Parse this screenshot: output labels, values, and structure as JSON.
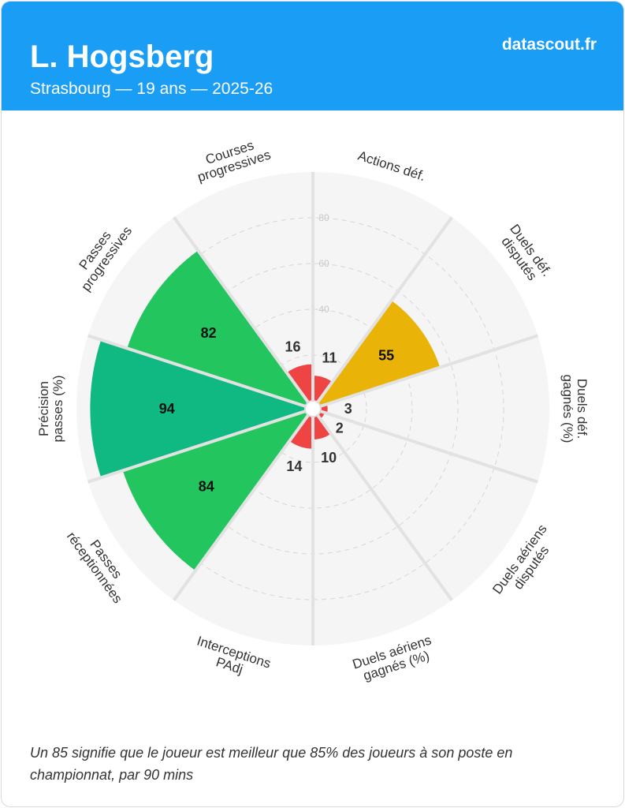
{
  "header": {
    "player_name": "L. Hogsberg",
    "subtitle": "Strasbourg — 19 ans — 2025-26",
    "brand": "datascout.fr"
  },
  "footnote": "Un 85 signifie que le joueur est meilleur que 85% des joueurs à son poste en championnat, par 90 mins",
  "colors": {
    "header_bg": "#1a9ef5",
    "low": "#ef4444",
    "mid": "#eab308",
    "high": "#22c55e",
    "elite": "#10b981"
  },
  "chart_data": {
    "type": "polar-bar",
    "title": "",
    "radial_range": [
      0,
      100
    ],
    "radial_ticks": [
      20,
      40,
      60,
      80
    ],
    "radial_tick_labels": [
      "40",
      "60",
      "80"
    ],
    "categories": [
      [
        "Actions déf."
      ],
      [
        "Duels déf.",
        "disputés"
      ],
      [
        "Duels déf.",
        "gagnés (%)"
      ],
      [
        "Duels aériens",
        "disputés"
      ],
      [
        "Duels aériens",
        "gagnés (%)"
      ],
      [
        "Interceptions",
        "PAdj"
      ],
      [
        "Passes",
        "réceptionnées"
      ],
      [
        "Précision",
        "passes (%)"
      ],
      [
        "Passes",
        "progressives"
      ],
      [
        "Courses",
        "progressives"
      ]
    ],
    "values": [
      11,
      55,
      3,
      2,
      10,
      14,
      84,
      94,
      82,
      16
    ],
    "value_labels": [
      "11",
      "55",
      "3",
      "2",
      "10",
      "14",
      "84",
      "94",
      "82",
      "16"
    ],
    "bar_colors": [
      "#ef4444",
      "#eab308",
      "#ef4444",
      "#ef4444",
      "#ef4444",
      "#ef4444",
      "#22c55e",
      "#10b981",
      "#22c55e",
      "#ef4444"
    ],
    "grid": true
  }
}
